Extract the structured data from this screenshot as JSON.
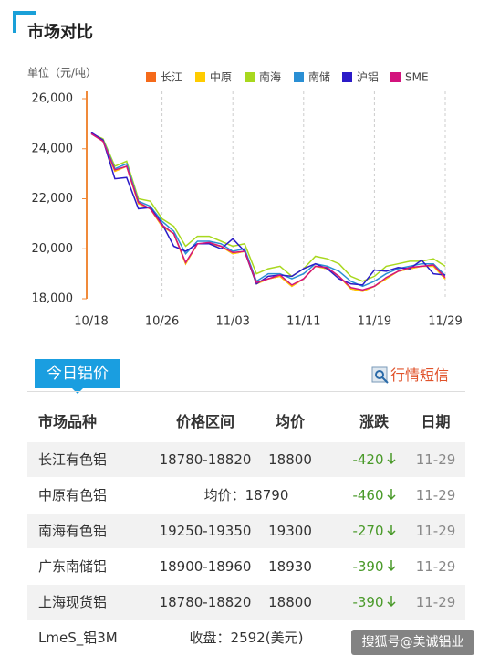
{
  "header": {
    "title": "市场对比"
  },
  "chart_data": {
    "type": "line",
    "ylabel": "单位（元/吨）",
    "categories": [
      "10/18",
      null,
      null,
      null,
      null,
      null,
      "10/26",
      null,
      null,
      null,
      null,
      null,
      "11/03",
      null,
      null,
      null,
      null,
      null,
      "11/11",
      null,
      null,
      null,
      null,
      null,
      "11/19",
      null,
      null,
      null,
      null,
      null,
      "11/29"
    ],
    "series": [
      {
        "name": "长江",
        "color": "#f56a1a",
        "values": [
          24600,
          24300,
          23100,
          23300,
          21800,
          21600,
          20900,
          20600,
          19400,
          20200,
          20200,
          20100,
          19800,
          19900,
          18600,
          18800,
          18900,
          18500,
          18800,
          19300,
          19200,
          18900,
          18400,
          18300,
          18500,
          18800,
          19100,
          19200,
          19300,
          19300,
          18800
        ]
      },
      {
        "name": "中原",
        "color": "#ffcc00",
        "values": [
          24600,
          24300,
          23100,
          23300,
          21800,
          21600,
          20900,
          20600,
          19400,
          20200,
          20200,
          20100,
          19800,
          19900,
          18600,
          18800,
          18900,
          18500,
          18800,
          19300,
          19200,
          18900,
          18400,
          18300,
          18500,
          18800,
          19100,
          19200,
          19300,
          19300,
          18790
        ]
      },
      {
        "name": "南海",
        "color": "#a8d81e",
        "values": [
          24600,
          24400,
          23300,
          23500,
          22000,
          21900,
          21200,
          20900,
          20100,
          20500,
          20500,
          20300,
          20100,
          20200,
          19000,
          19200,
          19300,
          18900,
          19200,
          19700,
          19600,
          19400,
          18900,
          18700,
          18900,
          19300,
          19400,
          19500,
          19500,
          19600,
          19300
        ]
      },
      {
        "name": "南储",
        "color": "#2a8fd4",
        "values": [
          24600,
          24350,
          23200,
          23400,
          21900,
          21700,
          21100,
          20700,
          19800,
          20300,
          20300,
          20200,
          19900,
          20000,
          18700,
          19000,
          19000,
          18800,
          19000,
          19400,
          19300,
          19100,
          18700,
          18500,
          18700,
          19000,
          19200,
          19300,
          19400,
          19400,
          18930
        ]
      },
      {
        "name": "沪铝",
        "color": "#2b1bc8",
        "values": [
          24650,
          24350,
          22800,
          22850,
          21600,
          21650,
          21000,
          20100,
          19900,
          20200,
          20200,
          20000,
          20400,
          19900,
          18600,
          18900,
          18950,
          18900,
          19200,
          19400,
          19200,
          18800,
          18600,
          18550,
          19150,
          19100,
          19250,
          19200,
          19550,
          19000,
          18950
        ]
      },
      {
        "name": "SME",
        "color": "#d3137d",
        "values": [
          24600,
          24300,
          23150,
          23300,
          21850,
          21600,
          20950,
          20600,
          19450,
          20200,
          20250,
          20100,
          19850,
          19900,
          18650,
          18800,
          18950,
          18550,
          18800,
          19300,
          19250,
          18900,
          18450,
          18350,
          18500,
          18850,
          19100,
          19250,
          19300,
          19350,
          18850
        ]
      }
    ],
    "ylim": [
      18000,
      26000
    ],
    "yticks": [
      {
        "value": 18000,
        "label": "18,000"
      },
      {
        "value": 20000,
        "label": "20,000"
      },
      {
        "value": 22000,
        "label": "22,000"
      },
      {
        "value": 24000,
        "label": "24,000"
      },
      {
        "value": 26000,
        "label": "26,000"
      }
    ]
  },
  "today": {
    "title": "今日铝价",
    "link": "行情短信",
    "columns": [
      "市场品种",
      "价格区间",
      "均价",
      "涨跌",
      "日期"
    ],
    "rows": [
      {
        "name": "长江有色铝",
        "range": "18780-18820",
        "avg": 18800,
        "change": -420,
        "date": "11-29"
      },
      {
        "name": "中原有色铝",
        "range": "均价：18790",
        "change": -460,
        "date": "11-29"
      },
      {
        "name": "南海有色铝",
        "range": "19250-19350",
        "avg": 19300,
        "change": -270,
        "date": "11-29"
      },
      {
        "name": "广东南储铝",
        "range": "18900-18960",
        "avg": 18930,
        "change": -390,
        "date": "11-29"
      },
      {
        "name": "上海现货铝",
        "range": "18780-18820",
        "avg": 18800,
        "change": -390,
        "date": "11-29"
      },
      {
        "name": "LmeS_铝3M",
        "range": "收盘：2592(美元)"
      }
    ]
  },
  "watermark": "搜狐号@美诚铝业"
}
